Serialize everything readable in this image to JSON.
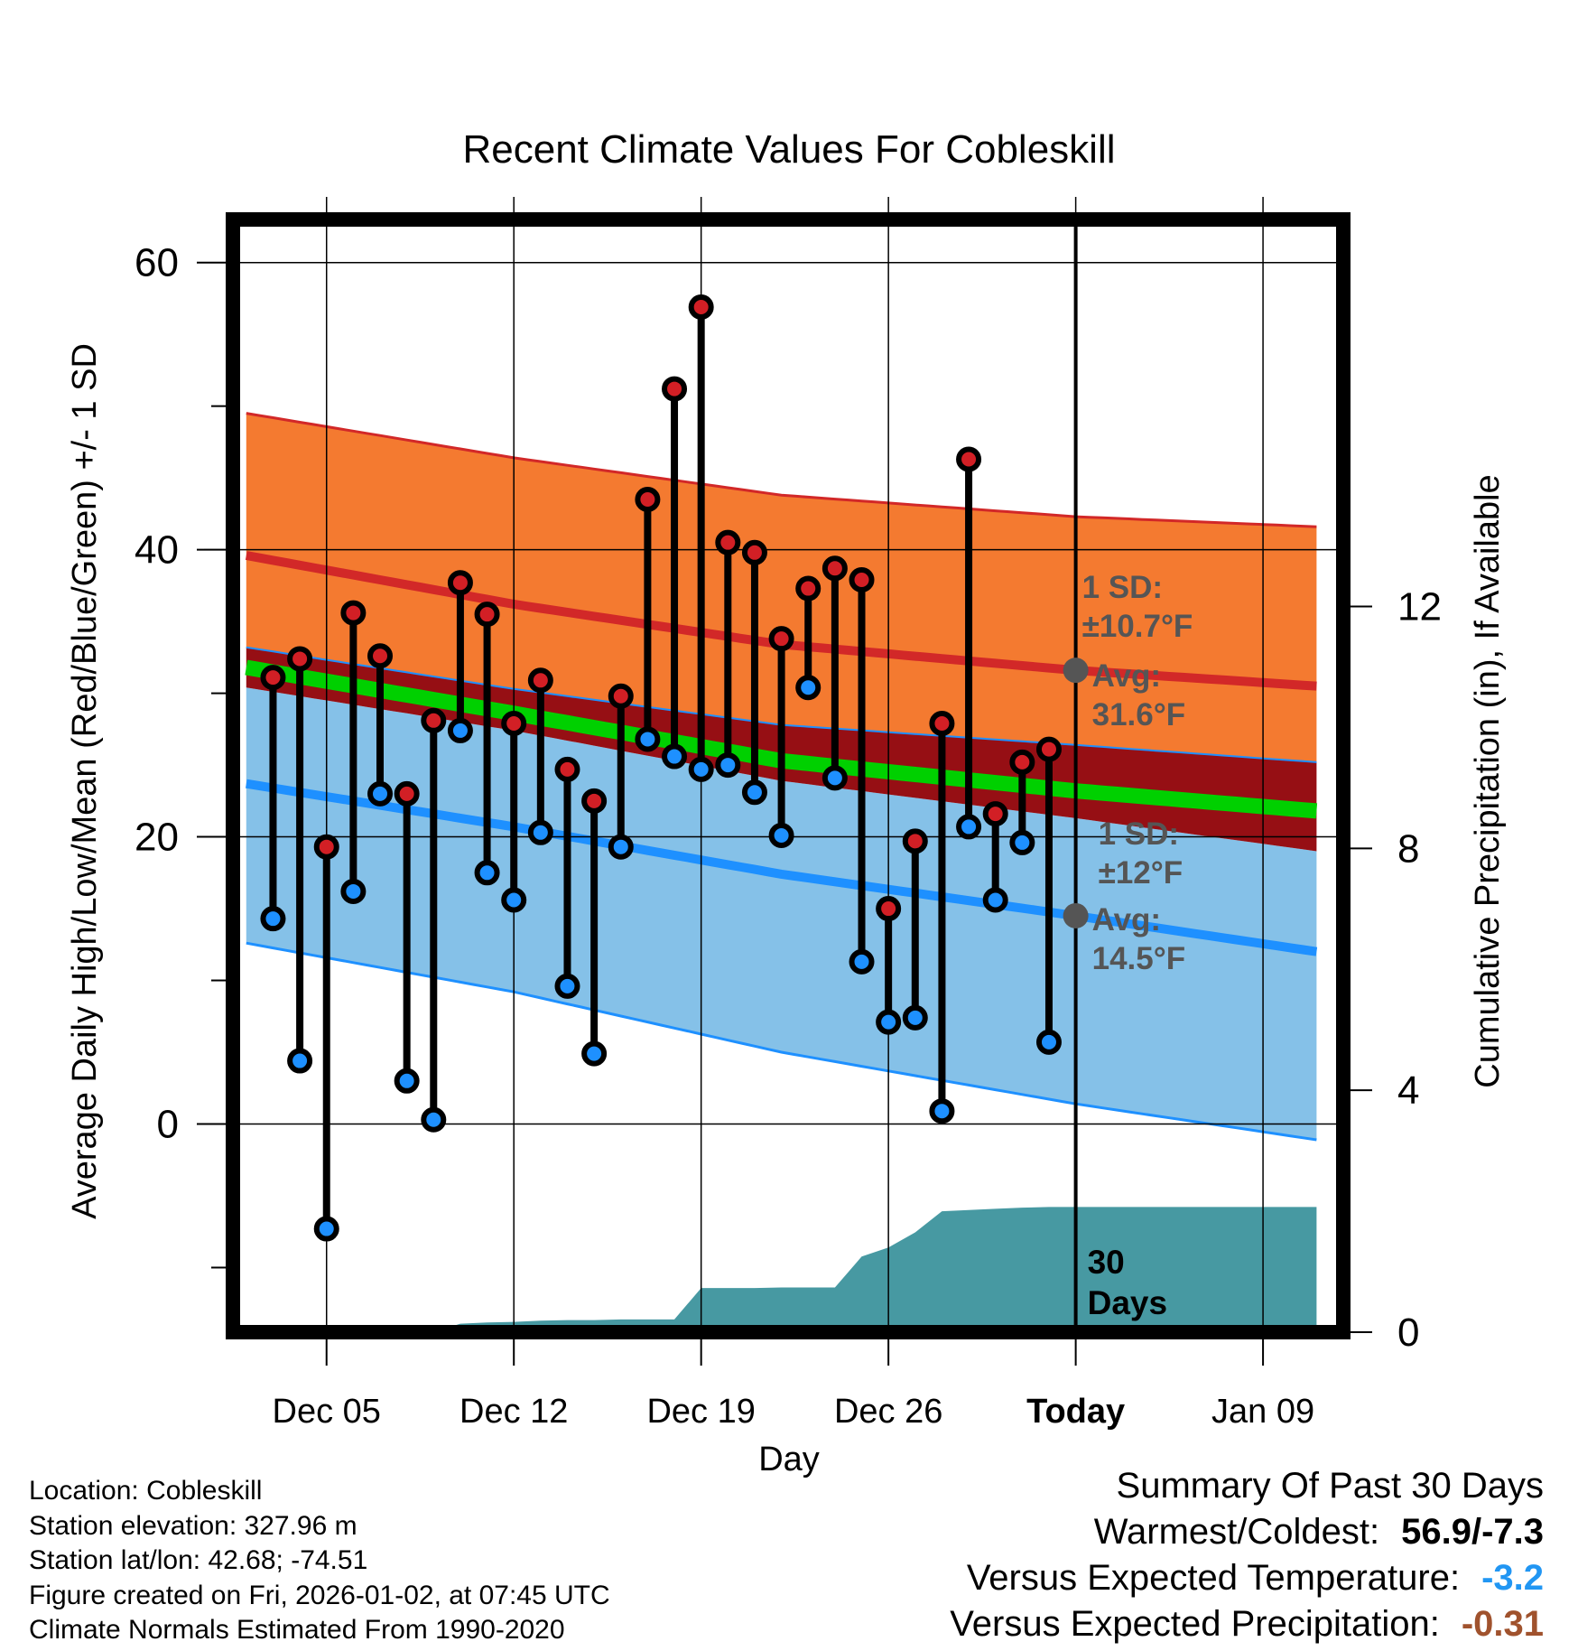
{
  "chart_data": {
    "type": "line",
    "title": "Recent Climate Values For Cobleskill",
    "xlabel": "Day",
    "ylabel": "Average Daily High/Low/Mean (Red/Blue/Green) +/- 1 SD",
    "ylabel_right": "Cumulative Precipitation (in), If Available",
    "ylim": [
      -14.5,
      63.0
    ],
    "ylim_right": [
      0,
      18.4
    ],
    "xlim": [
      -0.5,
      41.0
    ],
    "y_ticks": [
      0,
      20,
      40,
      60
    ],
    "y_ticks_right": [
      0,
      4,
      8,
      12
    ],
    "x_ticks": [
      {
        "day": 3,
        "label": "Dec 05"
      },
      {
        "day": 10,
        "label": "Dec 12"
      },
      {
        "day": 17,
        "label": "Dec 19"
      },
      {
        "day": 24,
        "label": "Dec 26"
      },
      {
        "day": 31,
        "label": "Today"
      },
      {
        "day": 38,
        "label": "Jan 09"
      }
    ],
    "today_index": 31,
    "period_label": [
      "30",
      "Days"
    ],
    "normals": {
      "days": [
        0,
        10,
        20,
        31,
        40
      ],
      "high_avg": [
        39.6,
        36.2,
        33.4,
        31.6,
        30.5
      ],
      "high_sd_upper": [
        49.5,
        46.4,
        43.8,
        42.3,
        41.6
      ],
      "high_sd_lower": [
        33.2,
        30.3,
        27.8,
        26.4,
        25.2
      ],
      "mean_avg": [
        31.8,
        28.6,
        25.3,
        23.2,
        21.8
      ],
      "low_avg": [
        23.7,
        20.7,
        17.4,
        14.5,
        12.0
      ],
      "low_sd_upper": [
        30.4,
        27.4,
        23.9,
        21.3,
        19.0
      ],
      "low_sd_lower": [
        12.6,
        9.2,
        5.0,
        1.4,
        -1.1
      ]
    },
    "series": [
      {
        "name": "Daily High",
        "values": [
          31.1,
          32.4,
          19.3,
          35.6,
          32.6,
          23.0,
          28.1,
          37.7,
          35.5,
          27.9,
          30.9,
          24.7,
          22.5,
          29.8,
          43.5,
          51.2,
          56.9,
          40.5,
          39.8,
          33.8,
          37.3,
          38.7,
          37.9,
          15.0,
          19.7,
          27.9,
          46.3,
          21.6,
          25.2,
          26.1
        ]
      },
      {
        "name": "Daily Low",
        "values": [
          14.3,
          4.4,
          -7.3,
          16.2,
          23.0,
          3.0,
          0.3,
          27.4,
          17.5,
          15.6,
          20.3,
          9.6,
          4.9,
          19.3,
          26.8,
          25.6,
          24.7,
          25.0,
          23.1,
          20.1,
          30.4,
          24.1,
          11.3,
          7.1,
          7.4,
          0.9,
          20.7,
          15.6,
          19.6,
          5.7
        ]
      }
    ],
    "precipitation": {
      "name": "Cumulative Precipitation (in)",
      "days": [
        0,
        7,
        8,
        9,
        10,
        11,
        12,
        13,
        14,
        15,
        16,
        17,
        18,
        19,
        20,
        21,
        22,
        23,
        24,
        25,
        26,
        27,
        28,
        29,
        30,
        31,
        40
      ],
      "values": [
        0,
        0,
        0.14,
        0.16,
        0.17,
        0.19,
        0.2,
        0.2,
        0.21,
        0.21,
        0.21,
        0.73,
        0.73,
        0.73,
        0.74,
        0.74,
        0.74,
        1.25,
        1.4,
        1.65,
        2.0,
        2.02,
        2.04,
        2.06,
        2.07,
        2.07,
        2.07
      ]
    },
    "annotations": {
      "high_sd": [
        "1 SD:",
        "±10.7°F"
      ],
      "high_avg": [
        "Avg:",
        "31.6°F"
      ],
      "low_sd": [
        "1 SD:",
        "±12°F"
      ],
      "low_avg": [
        "Avg:",
        "14.5°F"
      ],
      "high_avg_value": 31.6,
      "low_avg_value": 14.5
    },
    "colors": {
      "high_band": "#f47a30",
      "high_line": "#d22828",
      "mid_band": "#960f14",
      "mean_line": "#00d000",
      "low_band": "#85c1e8",
      "low_line": "#1e90ff",
      "precip": "#4799a2",
      "high_dot": "#d21f25",
      "low_dot": "#1e90ff",
      "annotation": "#555555"
    }
  },
  "info": {
    "location": "Location: Cobleskill",
    "elevation": "Station elevation: 327.96 m",
    "latlon": "Station lat/lon: 42.68; -74.51",
    "created": "Figure created on Fri, 2026-01-02, at 07:45 UTC",
    "normals": "Climate Normals Estimated From 1990-2020"
  },
  "summary": {
    "title": "Summary Of Past 30 Days",
    "warmest_label": "Warmest/Coldest:",
    "warmest_value": "56.9/-7.3",
    "temp_label": "Versus Expected Temperature:",
    "temp_value": "-3.2",
    "temp_color": "#2196f3",
    "precip_label": "Versus Expected Precipitation:",
    "precip_value": "-0.31",
    "precip_color": "#a0522d"
  }
}
